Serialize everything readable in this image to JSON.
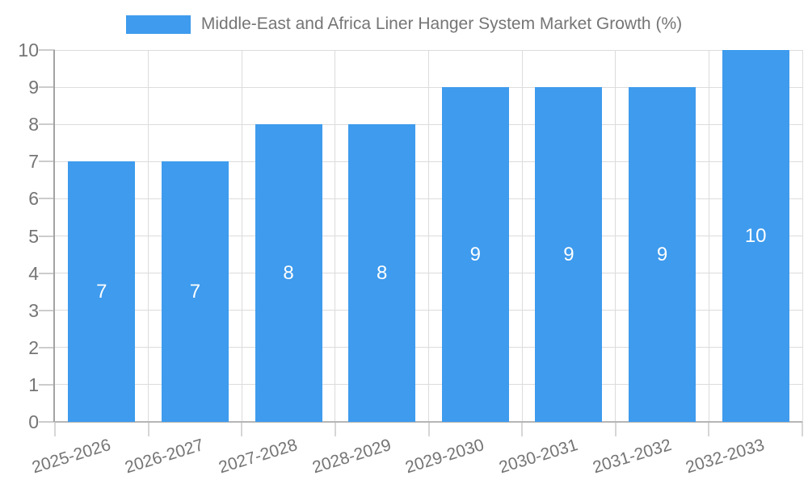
{
  "chart_data": {
    "type": "bar",
    "title": "Middle-East and Africa Liner Hanger System Market Growth (%)",
    "categories": [
      "2025-2026",
      "2026-2027",
      "2027-2028",
      "2028-2029",
      "2029-2030",
      "2030-2031",
      "2031-2032",
      "2032-2033"
    ],
    "values": [
      7,
      7,
      8,
      8,
      9,
      9,
      9,
      10
    ],
    "xlabel": "",
    "ylabel": "",
    "ylim": [
      0,
      10
    ],
    "y_ticks": [
      0,
      1,
      2,
      3,
      4,
      5,
      6,
      7,
      8,
      9,
      10
    ],
    "grid": true,
    "legend_position": "top",
    "colors": {
      "bar": "#3e9bed",
      "value_label": "#ffffff",
      "axis_text": "#757575",
      "axis_line": "#a3a3a3",
      "bottom_line": "#b5b5b5",
      "grid_line": "#dcdcdc",
      "tick_line": "#cccccc"
    }
  }
}
